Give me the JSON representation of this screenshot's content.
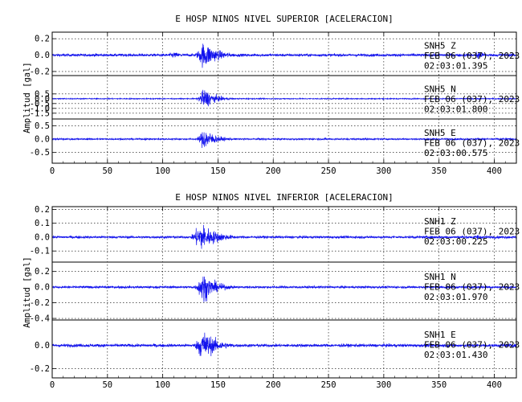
{
  "chart_data": [
    {
      "type": "line",
      "title": "E HOSP NINOS NIVEL SUPERIOR [ACELERACION]",
      "ylabel": "Amplitud [gal]",
      "xlim": [
        0,
        420
      ],
      "xticks": [
        "0",
        "50",
        "100",
        "150",
        "200",
        "250",
        "300",
        "350",
        "400"
      ],
      "line_color": "#1111ee",
      "grid": true,
      "panels": [
        {
          "station": "SNH5",
          "component": "Z",
          "date": "FEB 06 (037), 2023",
          "time": "02:03:01.395",
          "ylim": [
            -0.25,
            0.28
          ],
          "yticks": [
            "0.2",
            "0.0",
            "-0.2"
          ],
          "noise": 0.022,
          "bursts": [
            {
              "t": 138,
              "w": 9,
              "a": 0.22
            },
            {
              "t": 110,
              "w": 8,
              "a": 0.05
            },
            {
              "t": 385,
              "w": 3,
              "a": 0.1
            },
            {
              "t": 40,
              "w": 3,
              "a": 0.03
            }
          ]
        },
        {
          "station": "SNH5",
          "component": "N",
          "date": "FEB 06 (037), 2023",
          "time": "02:03:01.800",
          "ylim": [
            -2.1,
            2.4
          ],
          "yticks": [
            "0.5",
            "0.0",
            "-0.5",
            "-1.0",
            "-1.5"
          ],
          "noise": 0.07,
          "bursts": [
            {
              "t": 138,
              "w": 7,
              "a": 1.4
            }
          ]
        },
        {
          "station": "SNH5",
          "component": "E",
          "date": "FEB 06 (037), 2023",
          "time": "02:03:00.575",
          "ylim": [
            -0.9,
            0.75
          ],
          "yticks": [
            "0.5",
            "0.0",
            "-0.5"
          ],
          "noise": 0.04,
          "bursts": [
            {
              "t": 138,
              "w": 7,
              "a": 0.55
            }
          ]
        }
      ]
    },
    {
      "type": "line",
      "title": "E HOSP NINOS NIVEL INFERIOR [ACELERACION]",
      "ylabel": "Amplitud [gal]",
      "xlim": [
        0,
        420
      ],
      "xticks": [
        "0",
        "50",
        "100",
        "150",
        "200",
        "250",
        "300",
        "350",
        "400"
      ],
      "line_color": "#1111ee",
      "grid": true,
      "panels": [
        {
          "station": "SNH1",
          "component": "Z",
          "date": "FEB 06 (037), 2023",
          "time": "02:03:00.225",
          "ylim": [
            -0.18,
            0.22
          ],
          "yticks": [
            "0.2",
            "0.1",
            "0.0",
            "-0.1"
          ],
          "noise": 0.012,
          "bursts": [
            {
              "t": 135,
              "w": 10,
              "a": 0.14
            },
            {
              "t": 385,
              "w": 3,
              "a": 0.03
            }
          ]
        },
        {
          "station": "SNH1",
          "component": "N",
          "date": "FEB 06 (037), 2023",
          "time": "02:03:01.970",
          "ylim": [
            -0.42,
            0.32
          ],
          "yticks": [
            "0.2",
            "0.0",
            "-0.2",
            "-0.4"
          ],
          "noise": 0.02,
          "bursts": [
            {
              "t": 137,
              "w": 8,
              "a": 0.25
            }
          ]
        },
        {
          "station": "SNH1",
          "component": "E",
          "date": "FEB 06 (037), 2023",
          "time": "02:03:01.430",
          "ylim": [
            -0.28,
            0.22
          ],
          "yticks": [
            "0.0",
            "-0.2"
          ],
          "noise": 0.018,
          "bursts": [
            {
              "t": 137,
              "w": 9,
              "a": 0.18
            }
          ]
        }
      ]
    }
  ]
}
